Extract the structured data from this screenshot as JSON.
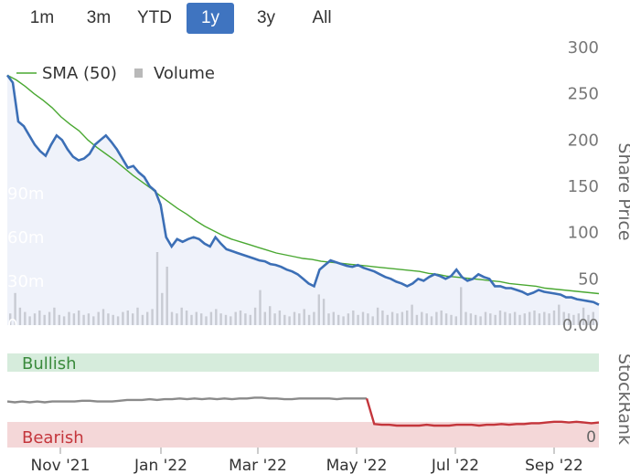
{
  "tabs": [
    {
      "label": "1m"
    },
    {
      "label": "3m"
    },
    {
      "label": "YTD"
    },
    {
      "label": "1y",
      "active": true
    },
    {
      "label": "3y"
    },
    {
      "label": "All"
    }
  ],
  "colors": {
    "price": "#3c6fb6",
    "sma": "#4aa832",
    "volume": "#b9b9b9",
    "rank_bull": "#8a8a8a",
    "rank_bear": "#c4363c",
    "bullish_band": "#d6ecdc",
    "bearish_band": "#f4d7d8",
    "accent": "#3f74c0"
  },
  "chart_data": [
    {
      "type": "line",
      "legend": {
        "items": [
          {
            "name": "SMA (50)",
            "icon": "line"
          },
          {
            "name": "Volume",
            "icon": "square"
          }
        ],
        "placement": "top-left"
      },
      "y_right": {
        "label": "Share Price",
        "ticks": [
          "0.00",
          "50",
          "100",
          "150",
          "200",
          "250",
          "300"
        ],
        "range": [
          0,
          300
        ]
      },
      "y_left": {
        "label": "",
        "ticks": [
          "0",
          "30m",
          "60m",
          "90m"
        ],
        "range": [
          0,
          190
        ]
      },
      "x_ticks": [
        "Nov '21",
        "Jan '22",
        "Mar '22",
        "May '22",
        "Jul '22",
        "Sep '22"
      ],
      "series": [
        {
          "name": "Share Price",
          "kind": "price",
          "values": [
            270,
            262,
            220,
            215,
            205,
            195,
            188,
            183,
            195,
            205,
            200,
            190,
            182,
            178,
            180,
            185,
            195,
            200,
            205,
            198,
            190,
            180,
            170,
            172,
            165,
            160,
            150,
            145,
            130,
            95,
            85,
            93,
            90,
            93,
            95,
            93,
            88,
            85,
            95,
            88,
            82,
            80,
            78,
            76,
            74,
            72,
            70,
            69,
            66,
            65,
            63,
            60,
            58,
            55,
            50,
            45,
            42,
            60,
            65,
            70,
            68,
            66,
            64,
            63,
            65,
            62,
            60,
            58,
            55,
            52,
            50,
            47,
            45,
            42,
            45,
            50,
            48,
            52,
            55,
            53,
            50,
            53,
            60,
            52,
            48,
            50,
            55,
            52,
            50,
            42,
            42,
            40,
            40,
            38,
            36,
            33,
            35,
            38,
            36,
            35,
            34,
            33,
            30,
            30,
            28,
            27,
            26,
            25,
            22
          ]
        },
        {
          "name": "SMA (50)",
          "kind": "sma",
          "values": [
            270,
            265,
            258,
            250,
            243,
            235,
            225,
            217,
            210,
            200,
            192,
            185,
            178,
            170,
            162,
            155,
            148,
            140,
            133,
            126,
            120,
            113,
            107,
            102,
            97,
            93,
            90,
            87,
            84,
            81,
            78,
            76,
            74,
            72,
            71,
            69,
            68,
            67,
            66,
            65,
            64,
            63,
            62,
            61,
            60,
            59,
            58,
            56,
            55,
            53,
            52,
            51,
            50,
            49,
            48,
            47,
            45,
            44,
            43,
            42,
            40,
            39,
            38,
            37,
            36,
            35,
            34
          ]
        },
        {
          "name": "Volume",
          "kind": "volume",
          "values": [
            8,
            22,
            12,
            9,
            6,
            8,
            10,
            7,
            9,
            12,
            7,
            6,
            9,
            8,
            10,
            7,
            8,
            6,
            9,
            11,
            8,
            7,
            6,
            9,
            10,
            8,
            12,
            7,
            9,
            11,
            50,
            22,
            40,
            9,
            8,
            12,
            10,
            7,
            9,
            8,
            6,
            9,
            11,
            8,
            7,
            6,
            9,
            10,
            8,
            7,
            12,
            24,
            9,
            13,
            8,
            10,
            7,
            6,
            9,
            8,
            11,
            7,
            9,
            21,
            18,
            8,
            9,
            7,
            6,
            8,
            10,
            7,
            9,
            8,
            6,
            12,
            10,
            7,
            9,
            8,
            9,
            10,
            14,
            7,
            9,
            8,
            6,
            9,
            10,
            8,
            7,
            6,
            26,
            9,
            8,
            7,
            6,
            9,
            8,
            7,
            10,
            9,
            8,
            9,
            7,
            8,
            9,
            10,
            8,
            9,
            8,
            10,
            14,
            9,
            8,
            7,
            8,
            12,
            7,
            9
          ]
        }
      ]
    },
    {
      "type": "line",
      "y_right": {
        "label": "StockRank",
        "ticks": [
          "0"
        ],
        "range": [
          0,
          100
        ]
      },
      "bands": [
        {
          "name": "Bullish"
        },
        {
          "name": "Bearish"
        }
      ],
      "series": [
        {
          "name": "StockRank",
          "kind": "rank",
          "values": [
            31,
            30,
            31,
            30,
            31,
            30,
            31,
            31,
            31,
            31,
            32,
            32,
            31,
            31,
            31,
            32,
            33,
            33,
            33,
            34,
            33,
            34,
            34,
            35,
            34,
            35,
            34,
            35,
            34,
            35,
            34,
            35,
            35,
            36,
            36,
            35,
            35,
            34,
            34,
            35,
            35,
            35,
            35,
            35,
            34,
            35,
            35,
            35,
            35,
            2,
            1,
            1,
            0,
            0,
            0,
            0,
            1,
            0,
            0,
            0,
            1,
            1,
            1,
            0,
            1,
            1,
            2,
            1,
            2,
            2,
            3,
            3,
            4,
            5,
            5,
            4,
            5,
            4,
            3,
            4
          ]
        }
      ]
    }
  ]
}
